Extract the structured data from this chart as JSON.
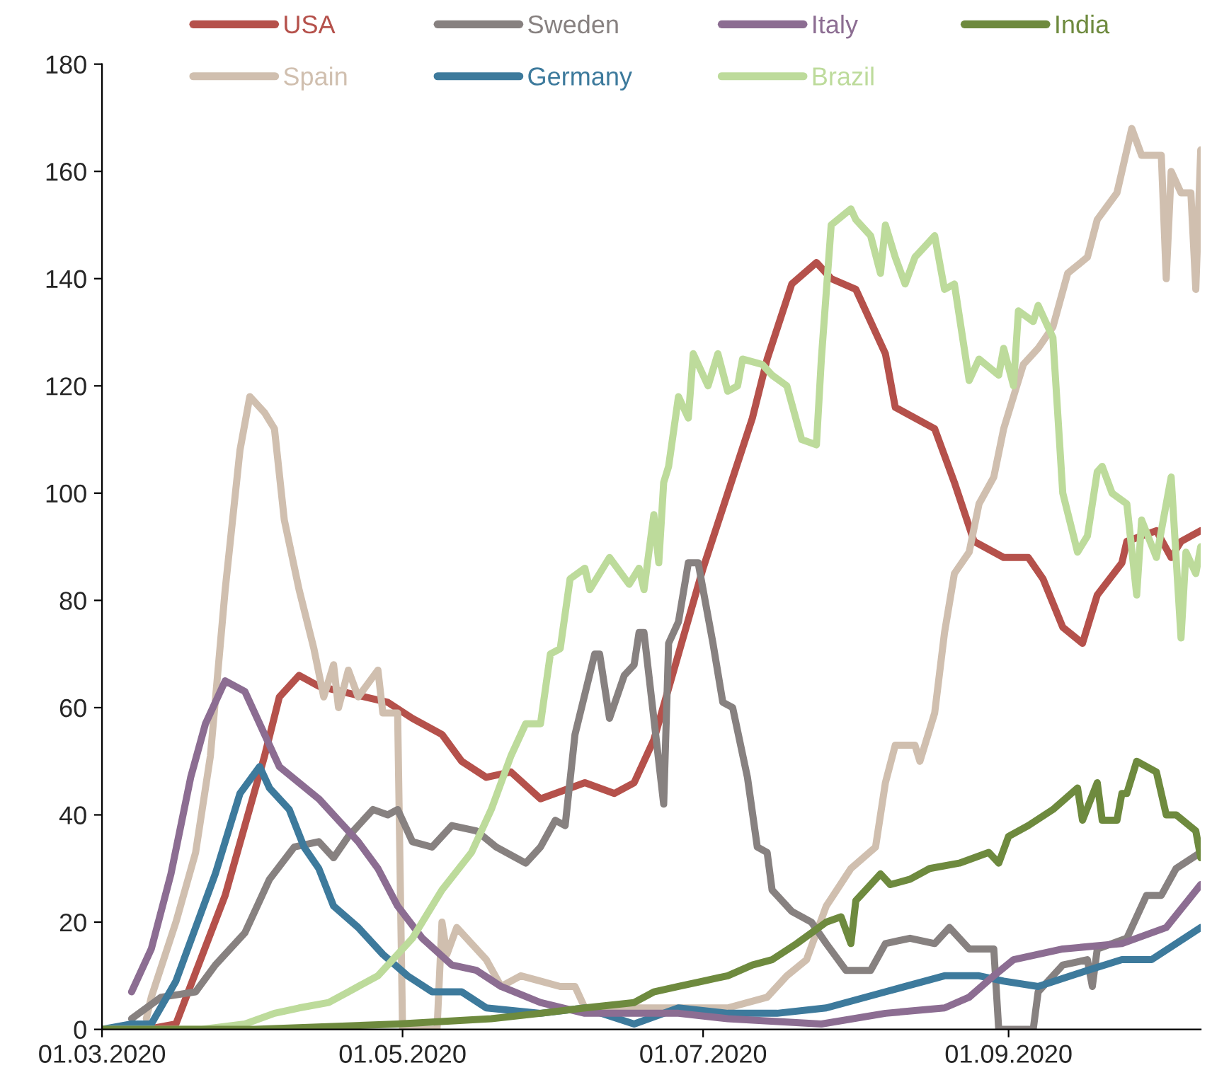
{
  "chart_data": {
    "type": "line",
    "legend": "top",
    "line_style": "solid",
    "marker": "none",
    "grid": false,
    "xlim": [
      "2020-03-01",
      "2020-10-10"
    ],
    "xticks": [
      {
        "value": "2020-03-01",
        "label": "01.03.2020"
      },
      {
        "value": "2020-05-01",
        "label": "01.05.2020"
      },
      {
        "value": "2020-07-01",
        "label": "01.07.2020"
      },
      {
        "value": "2020-09-01",
        "label": "01.09.2020"
      }
    ],
    "ylim": [
      0,
      180
    ],
    "yticks": [
      0,
      20,
      40,
      60,
      80,
      100,
      120,
      140,
      160,
      180
    ],
    "series": [
      {
        "name": "USA",
        "color": "#b5514b",
        "x": [
          "2020-03-01",
          "2020-03-10",
          "2020-03-16",
          "2020-03-26",
          "2020-04-03",
          "2020-04-06",
          "2020-04-10",
          "2020-04-14",
          "2020-04-28",
          "2020-05-03",
          "2020-05-09",
          "2020-05-13",
          "2020-05-18",
          "2020-05-23",
          "2020-05-29",
          "2020-06-07",
          "2020-06-13",
          "2020-06-17",
          "2020-06-21",
          "2020-06-26",
          "2020-07-01",
          "2020-07-06",
          "2020-07-11",
          "2020-07-14",
          "2020-07-19",
          "2020-07-24",
          "2020-07-27",
          "2020-08-01",
          "2020-08-07",
          "2020-08-09",
          "2020-08-17",
          "2020-08-21",
          "2020-08-25",
          "2020-08-31",
          "2020-09-05",
          "2020-09-08",
          "2020-09-12",
          "2020-09-16",
          "2020-09-19",
          "2020-09-24",
          "2020-09-25",
          "2020-10-01",
          "2020-10-04",
          "2020-10-06",
          "2020-10-10"
        ],
        "values": [
          0,
          0,
          1,
          25,
          51,
          62,
          66,
          64,
          61,
          58,
          55,
          50,
          47,
          48,
          43,
          46,
          44,
          46,
          54,
          70,
          86,
          100,
          114,
          125,
          139,
          143,
          140,
          138,
          126,
          116,
          112,
          102,
          91,
          88,
          88,
          84,
          75,
          72,
          81,
          87,
          91,
          93,
          88,
          91,
          93
        ]
      },
      {
        "name": "Spain",
        "color": "#d0bfaf",
        "x": [
          "2020-03-10",
          "2020-03-11",
          "2020-03-16",
          "2020-03-20",
          "2020-03-23",
          "2020-03-26",
          "2020-03-29",
          "2020-03-31",
          "2020-04-03",
          "2020-04-05",
          "2020-04-07",
          "2020-04-10",
          "2020-04-13",
          "2020-04-15",
          "2020-04-17",
          "2020-04-18",
          "2020-04-20",
          "2020-04-22",
          "2020-04-26",
          "2020-04-27",
          "2020-04-30",
          "2020-05-01",
          "2020-05-08",
          "2020-05-09",
          "2020-05-10",
          "2020-05-12",
          "2020-05-18",
          "2020-05-21",
          "2020-05-25",
          "2020-05-29",
          "2020-06-02",
          "2020-06-05",
          "2020-06-07",
          "2020-06-17",
          "2020-06-26",
          "2020-07-06",
          "2020-07-14",
          "2020-07-18",
          "2020-07-22",
          "2020-07-26",
          "2020-07-31",
          "2020-08-05",
          "2020-08-07",
          "2020-08-09",
          "2020-08-13",
          "2020-08-14",
          "2020-08-17",
          "2020-08-19",
          "2020-08-21",
          "2020-08-24",
          "2020-08-26",
          "2020-08-29",
          "2020-08-31",
          "2020-09-04",
          "2020-09-07",
          "2020-09-10",
          "2020-09-13",
          "2020-09-17",
          "2020-09-19",
          "2020-09-23",
          "2020-09-26",
          "2020-09-28",
          "2020-10-02",
          "2020-10-03",
          "2020-10-04",
          "2020-10-06",
          "2020-10-08",
          "2020-10-09",
          "2020-10-10"
        ],
        "values": [
          2,
          6,
          20,
          33,
          51,
          82,
          108,
          118,
          115,
          112,
          95,
          82,
          71,
          62,
          68,
          60,
          67,
          62,
          67,
          59,
          59,
          0,
          0,
          20,
          14,
          19,
          13,
          8,
          10,
          9,
          8,
          8,
          4,
          4,
          4,
          4,
          6,
          10,
          13,
          23,
          30,
          34,
          46,
          53,
          53,
          50,
          59,
          74,
          85,
          89,
          98,
          103,
          112,
          124,
          127,
          131,
          141,
          144,
          151,
          156,
          168,
          163,
          163,
          140,
          160,
          156,
          156,
          138,
          164
        ]
      },
      {
        "name": "Sweden",
        "color": "#878180",
        "x": [
          "2020-03-07",
          "2020-03-13",
          "2020-03-20",
          "2020-03-24",
          "2020-03-30",
          "2020-04-04",
          "2020-04-09",
          "2020-04-14",
          "2020-04-17",
          "2020-04-20",
          "2020-04-25",
          "2020-04-28",
          "2020-04-30",
          "2020-05-03",
          "2020-05-07",
          "2020-05-11",
          "2020-05-16",
          "2020-05-20",
          "2020-05-26",
          "2020-05-29",
          "2020-06-01",
          "2020-06-03",
          "2020-06-05",
          "2020-06-09",
          "2020-06-10",
          "2020-06-12",
          "2020-06-15",
          "2020-06-17",
          "2020-06-18",
          "2020-06-19",
          "2020-06-23",
          "2020-06-24",
          "2020-06-26",
          "2020-06-28",
          "2020-06-30",
          "2020-07-03",
          "2020-07-05",
          "2020-07-07",
          "2020-07-10",
          "2020-07-12",
          "2020-07-14",
          "2020-07-15",
          "2020-07-19",
          "2020-07-23",
          "2020-07-26",
          "2020-07-30",
          "2020-08-04",
          "2020-08-07",
          "2020-08-12",
          "2020-08-17",
          "2020-08-20",
          "2020-08-24",
          "2020-08-29",
          "2020-08-30",
          "2020-09-06",
          "2020-09-07",
          "2020-09-12",
          "2020-09-17",
          "2020-09-18",
          "2020-09-19",
          "2020-09-25",
          "2020-09-29",
          "2020-10-02",
          "2020-10-05",
          "2020-10-10"
        ],
        "values": [
          2,
          6,
          7,
          12,
          18,
          28,
          34,
          35,
          32,
          36,
          41,
          40,
          41,
          35,
          34,
          38,
          37,
          34,
          31,
          34,
          39,
          38,
          55,
          70,
          70,
          58,
          66,
          68,
          74,
          74,
          42,
          72,
          76,
          87,
          87,
          72,
          61,
          60,
          47,
          34,
          33,
          26,
          22,
          20,
          16,
          11,
          11,
          16,
          17,
          16,
          19,
          15,
          15,
          0,
          0,
          7,
          12,
          13,
          8,
          15,
          17,
          25,
          25,
          30,
          33
        ]
      },
      {
        "name": "Germany",
        "color": "#3d7a9c",
        "x": [
          "2020-03-01",
          "2020-03-07",
          "2020-03-11",
          "2020-03-16",
          "2020-03-20",
          "2020-03-24",
          "2020-03-27",
          "2020-03-29",
          "2020-04-02",
          "2020-04-04",
          "2020-04-08",
          "2020-04-11",
          "2020-04-14",
          "2020-04-17",
          "2020-04-22",
          "2020-04-27",
          "2020-05-02",
          "2020-05-07",
          "2020-05-13",
          "2020-05-18",
          "2020-05-29",
          "2020-06-07",
          "2020-06-17",
          "2020-06-26",
          "2020-07-06",
          "2020-07-16",
          "2020-07-26",
          "2020-08-07",
          "2020-08-19",
          "2020-08-26",
          "2020-08-31",
          "2020-09-07",
          "2020-09-17",
          "2020-09-24",
          "2020-09-30",
          "2020-10-10"
        ],
        "values": [
          0,
          1,
          1,
          9,
          19,
          29,
          38,
          44,
          49,
          45,
          41,
          34,
          30,
          23,
          19,
          14,
          10,
          7,
          7,
          4,
          3,
          4,
          1,
          4,
          3,
          3,
          4,
          7,
          10,
          10,
          9,
          8,
          11,
          13,
          13,
          19
        ]
      },
      {
        "name": "Italy",
        "color": "#8c6d92",
        "x": [
          "2020-03-07",
          "2020-03-11",
          "2020-03-15",
          "2020-03-19",
          "2020-03-22",
          "2020-03-26",
          "2020-03-30",
          "2020-04-03",
          "2020-04-06",
          "2020-04-10",
          "2020-04-14",
          "2020-04-18",
          "2020-04-22",
          "2020-04-26",
          "2020-04-30",
          "2020-05-05",
          "2020-05-11",
          "2020-05-16",
          "2020-05-21",
          "2020-05-29",
          "2020-06-07",
          "2020-06-17",
          "2020-06-26",
          "2020-07-06",
          "2020-07-25",
          "2020-08-07",
          "2020-08-19",
          "2020-08-24",
          "2020-08-29",
          "2020-09-02",
          "2020-09-12",
          "2020-09-24",
          "2020-10-03",
          "2020-10-10"
        ],
        "values": [
          7,
          15,
          29,
          47,
          57,
          65,
          63,
          55,
          49,
          46,
          43,
          39,
          35,
          30,
          23,
          17,
          12,
          11,
          8,
          5,
          3,
          3,
          3,
          2,
          1,
          3,
          4,
          6,
          10,
          13,
          15,
          16,
          19,
          27
        ]
      },
      {
        "name": "Brazil",
        "color": "#bddb9b",
        "x": [
          "2020-03-01",
          "2020-03-21",
          "2020-03-30",
          "2020-04-05",
          "2020-04-10",
          "2020-04-16",
          "2020-04-20",
          "2020-04-26",
          "2020-05-03",
          "2020-05-09",
          "2020-05-15",
          "2020-05-19",
          "2020-05-23",
          "2020-05-26",
          "2020-05-29",
          "2020-05-31",
          "2020-06-02",
          "2020-06-04",
          "2020-06-07",
          "2020-06-08",
          "2020-06-12",
          "2020-06-16",
          "2020-06-18",
          "2020-06-19",
          "2020-06-21",
          "2020-06-22",
          "2020-06-23",
          "2020-06-24",
          "2020-06-26",
          "2020-06-28",
          "2020-06-29",
          "2020-07-02",
          "2020-07-04",
          "2020-07-06",
          "2020-07-08",
          "2020-07-09",
          "2020-07-13",
          "2020-07-15",
          "2020-07-18",
          "2020-07-21",
          "2020-07-24",
          "2020-07-25",
          "2020-07-27",
          "2020-07-31",
          "2020-08-01",
          "2020-08-04",
          "2020-08-06",
          "2020-08-07",
          "2020-08-09",
          "2020-08-11",
          "2020-08-13",
          "2020-08-15",
          "2020-08-17",
          "2020-08-19",
          "2020-08-21",
          "2020-08-24",
          "2020-08-26",
          "2020-08-30",
          "2020-08-31",
          "2020-09-02",
          "2020-09-03",
          "2020-09-06",
          "2020-09-07",
          "2020-09-10",
          "2020-09-12",
          "2020-09-15",
          "2020-09-17",
          "2020-09-19",
          "2020-09-20",
          "2020-09-22",
          "2020-09-25",
          "2020-09-27",
          "2020-09-28",
          "2020-10-01",
          "2020-10-04",
          "2020-10-06",
          "2020-10-07",
          "2020-10-09",
          "2020-10-10"
        ],
        "values": [
          0,
          0,
          1,
          3,
          4,
          5,
          7,
          10,
          17,
          26,
          33,
          41,
          51,
          57,
          57,
          70,
          71,
          84,
          86,
          82,
          88,
          83,
          86,
          82,
          96,
          87,
          102,
          105,
          118,
          114,
          126,
          120,
          126,
          119,
          120,
          125,
          124,
          122,
          120,
          110,
          109,
          125,
          150,
          153,
          151,
          148,
          141,
          150,
          144,
          139,
          144,
          146,
          148,
          138,
          139,
          121,
          125,
          122,
          127,
          120,
          134,
          132,
          135,
          129,
          100,
          89,
          92,
          104,
          105,
          100,
          98,
          81,
          95,
          88,
          103,
          73,
          89,
          85,
          90
        ]
      },
      {
        "name": "India",
        "color": "#6e8a3e",
        "x": [
          "2020-03-01",
          "2020-04-01",
          "2020-04-30",
          "2020-05-19",
          "2020-05-29",
          "2020-06-07",
          "2020-06-17",
          "2020-06-21",
          "2020-06-26",
          "2020-07-01",
          "2020-07-06",
          "2020-07-11",
          "2020-07-15",
          "2020-07-20",
          "2020-07-26",
          "2020-07-29",
          "2020-07-31",
          "2020-08-01",
          "2020-08-03",
          "2020-08-06",
          "2020-08-08",
          "2020-08-12",
          "2020-08-16",
          "2020-08-22",
          "2020-08-28",
          "2020-08-30",
          "2020-09-01",
          "2020-09-05",
          "2020-09-10",
          "2020-09-15",
          "2020-09-16",
          "2020-09-19",
          "2020-09-20",
          "2020-09-23",
          "2020-09-24",
          "2020-09-25",
          "2020-09-27",
          "2020-10-01",
          "2020-10-03",
          "2020-10-05",
          "2020-10-09",
          "2020-10-10"
        ],
        "values": [
          0,
          0,
          1,
          2,
          3,
          4,
          5,
          7,
          8,
          9,
          10,
          12,
          13,
          16,
          20,
          21,
          16,
          24,
          26,
          29,
          27,
          28,
          30,
          31,
          33,
          31,
          36,
          38,
          41,
          45,
          39,
          46,
          39,
          39,
          44,
          44,
          50,
          48,
          40,
          40,
          37,
          32
        ]
      }
    ]
  }
}
